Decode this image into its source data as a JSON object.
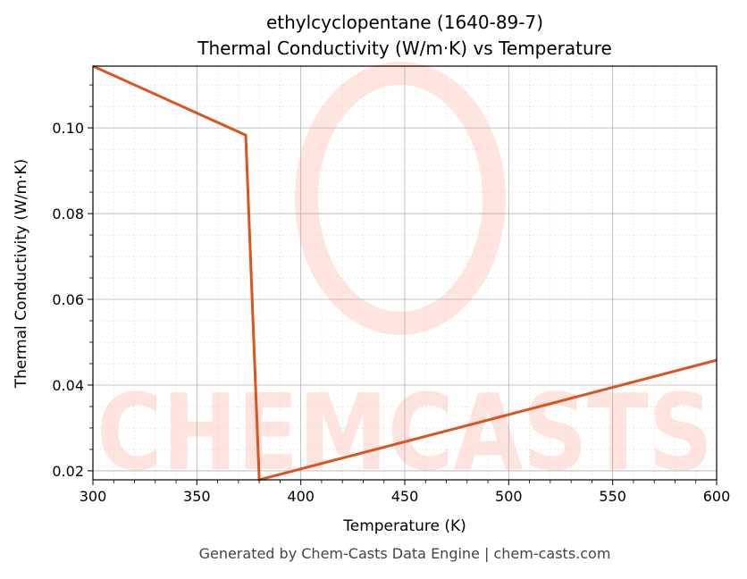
{
  "chart_data": {
    "type": "line",
    "title": [
      "ethylcyclopentane (1640-89-7)",
      "Thermal Conductivity (W/m·K) vs Temperature"
    ],
    "x_label": "Temperature (K)",
    "y_label": "Thermal Conductivity (W/m·K)",
    "x": [
      300,
      373.5,
      380,
      600
    ],
    "series": [
      {
        "name": "Thermal Conductivity",
        "color": "#d9541e",
        "values": [
          0.1144,
          0.0983,
          0.0179,
          0.0458
        ]
      }
    ],
    "xlim": [
      300,
      600
    ],
    "ylim": [
      0.0179,
      0.1144
    ],
    "xticks": [
      300,
      350,
      400,
      450,
      500,
      550,
      600
    ],
    "yticks": [
      {
        "value": 0.02,
        "label": "0.02"
      },
      {
        "value": 0.04,
        "label": "0.04"
      },
      {
        "value": 0.06,
        "label": "0.06"
      },
      {
        "value": 0.08,
        "label": "0.08"
      },
      {
        "value": 0.1,
        "label": "0.10"
      }
    ],
    "grid": true,
    "minor_grid": true,
    "watermark": "CHEMCASTS",
    "footer": "Generated by Chem-Casts Data Engine | chem-casts.com"
  }
}
